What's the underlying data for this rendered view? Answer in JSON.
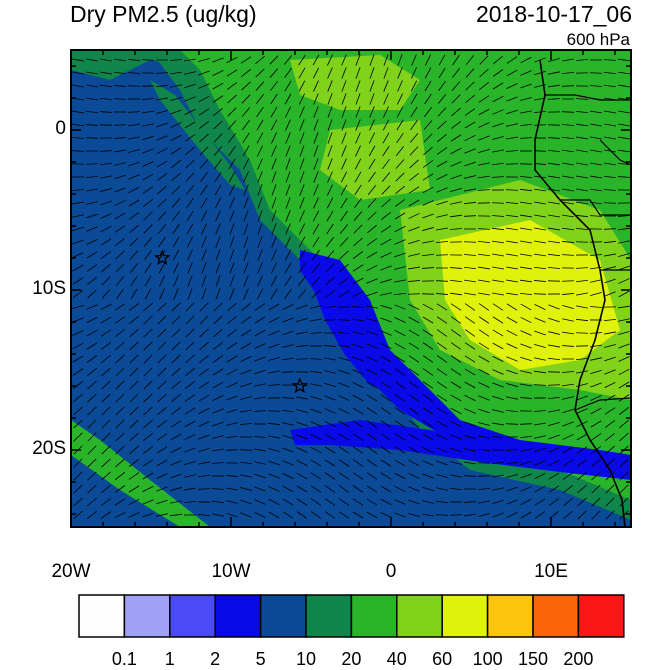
{
  "header": {
    "title": "Dry PM2.5 (ug/kg)",
    "datetime": "2018-10-17_06",
    "level": "600 hPa"
  },
  "map": {
    "lat_labels": [
      "0",
      "10S",
      "20S"
    ],
    "lon_labels": [
      "20W",
      "10W",
      "0",
      "10E"
    ],
    "markers": [
      {
        "name": "star-marker-1",
        "lon": -14.3,
        "lat": -8.0
      },
      {
        "name": "star-marker-2",
        "lon": -5.7,
        "lat": -16.0
      }
    ]
  },
  "colorbar": {
    "labels": [
      "0.1",
      "1",
      "2",
      "5",
      "10",
      "20",
      "40",
      "60",
      "100",
      "150",
      "200"
    ],
    "colors": [
      "#fdfdfd",
      "#a0a0f8",
      "#4a4af6",
      "#0a0ae8",
      "#0a4a96",
      "#10864a",
      "#2ab42a",
      "#80d21a",
      "#e0f20a",
      "#fcc40a",
      "#fc640a",
      "#fc1616"
    ]
  }
}
